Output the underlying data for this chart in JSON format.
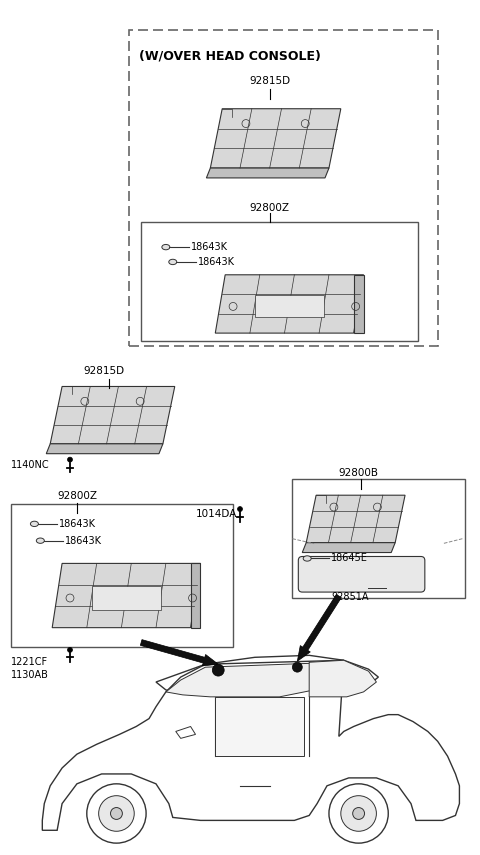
{
  "bg_color": "#ffffff",
  "fig_width": 4.8,
  "fig_height": 8.55,
  "dpi": 100,
  "labels": {
    "overhead_box_title": "(W/OVER HEAD CONSOLE)",
    "top_part_label": "92815D",
    "top_assembly_label": "92800Z",
    "inner_bulb1": "18643K",
    "inner_bulb2": "18643K",
    "left_part_label": "92815D",
    "left_bolt_label": "1140NC",
    "left_assembly_label": "92800Z",
    "left_inner_bulb1": "18643K",
    "left_inner_bulb2": "18643K",
    "left_screw1": "1221CF",
    "left_screw2": "1130AB",
    "center_bolt_label": "1014DA",
    "right_assembly_label": "92800B",
    "right_bulb_label": "18645E",
    "right_lens_label": "92851A"
  },
  "font_size_label": 7.5,
  "font_size_small": 7.0,
  "line_color": "#333333",
  "part_face": "#d8d8d8",
  "part_edge": "#333333"
}
